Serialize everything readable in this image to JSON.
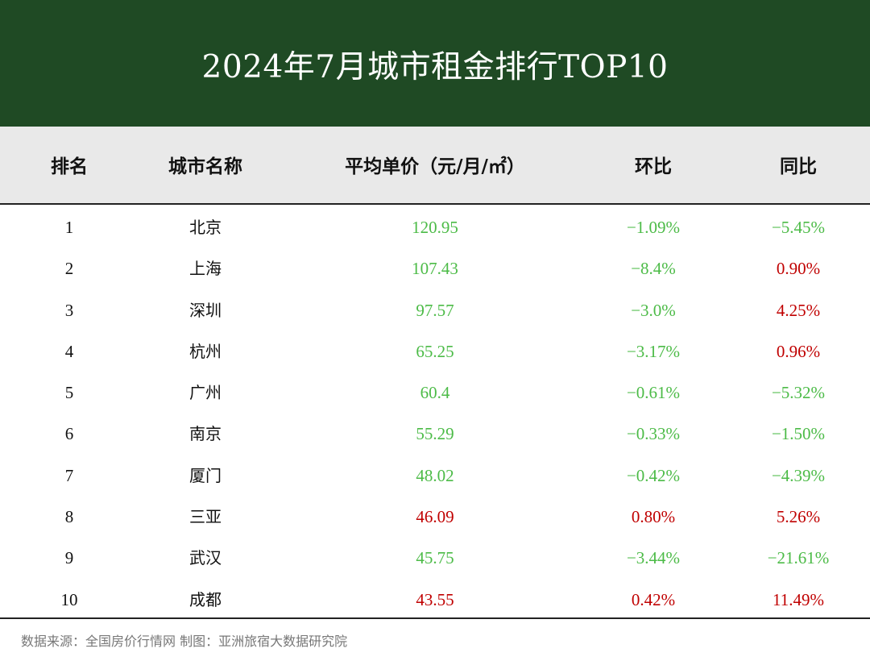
{
  "title": "2024年7月城市租金排行TOP10",
  "headers": {
    "rank": "排名",
    "city": "城市名称",
    "price": "平均单价（元/月/㎡）",
    "mom": "环比",
    "yoy": "同比"
  },
  "colors": {
    "banner": "#1f4a24",
    "header_bg": "#e9e9e9",
    "increase": "#c00000",
    "decrease": "#4cbb47",
    "text": "#111111",
    "source": "#777777"
  },
  "chart_data": {
    "type": "table",
    "columns": [
      "排名",
      "城市名称",
      "平均单价（元/月/㎡）",
      "环比",
      "同比"
    ],
    "rows": [
      {
        "rank": "1",
        "city": "北京",
        "price": "120.95",
        "mom": "−1.09%",
        "yoy": "−5.45%",
        "price_dir": "down",
        "mom_dir": "down",
        "yoy_dir": "down"
      },
      {
        "rank": "2",
        "city": "上海",
        "price": "107.43",
        "mom": "−8.4%",
        "yoy": "0.90%",
        "price_dir": "down",
        "mom_dir": "down",
        "yoy_dir": "up"
      },
      {
        "rank": "3",
        "city": "深圳",
        "price": "97.57",
        "mom": "−3.0%",
        "yoy": "4.25%",
        "price_dir": "down",
        "mom_dir": "down",
        "yoy_dir": "up"
      },
      {
        "rank": "4",
        "city": "杭州",
        "price": "65.25",
        "mom": "−3.17%",
        "yoy": "0.96%",
        "price_dir": "down",
        "mom_dir": "down",
        "yoy_dir": "up"
      },
      {
        "rank": "5",
        "city": "广州",
        "price": "60.4",
        "mom": "−0.61%",
        "yoy": "−5.32%",
        "price_dir": "down",
        "mom_dir": "down",
        "yoy_dir": "down"
      },
      {
        "rank": "6",
        "city": "南京",
        "price": "55.29",
        "mom": "−0.33%",
        "yoy": "−1.50%",
        "price_dir": "down",
        "mom_dir": "down",
        "yoy_dir": "down"
      },
      {
        "rank": "7",
        "city": "厦门",
        "price": "48.02",
        "mom": "−0.42%",
        "yoy": "−4.39%",
        "price_dir": "down",
        "mom_dir": "down",
        "yoy_dir": "down"
      },
      {
        "rank": "8",
        "city": "三亚",
        "price": "46.09",
        "mom": "0.80%",
        "yoy": "5.26%",
        "price_dir": "up",
        "mom_dir": "up",
        "yoy_dir": "up"
      },
      {
        "rank": "9",
        "city": "武汉",
        "price": "45.75",
        "mom": "−3.44%",
        "yoy": "−21.61%",
        "price_dir": "down",
        "mom_dir": "down",
        "yoy_dir": "down"
      },
      {
        "rank": "10",
        "city": "成都",
        "price": "43.55",
        "mom": "0.42%",
        "yoy": "11.49%",
        "price_dir": "up",
        "mom_dir": "up",
        "yoy_dir": "up"
      }
    ]
  },
  "source_text": "数据来源：全国房价行情网  制图：亚洲旅宿大数据研究院"
}
